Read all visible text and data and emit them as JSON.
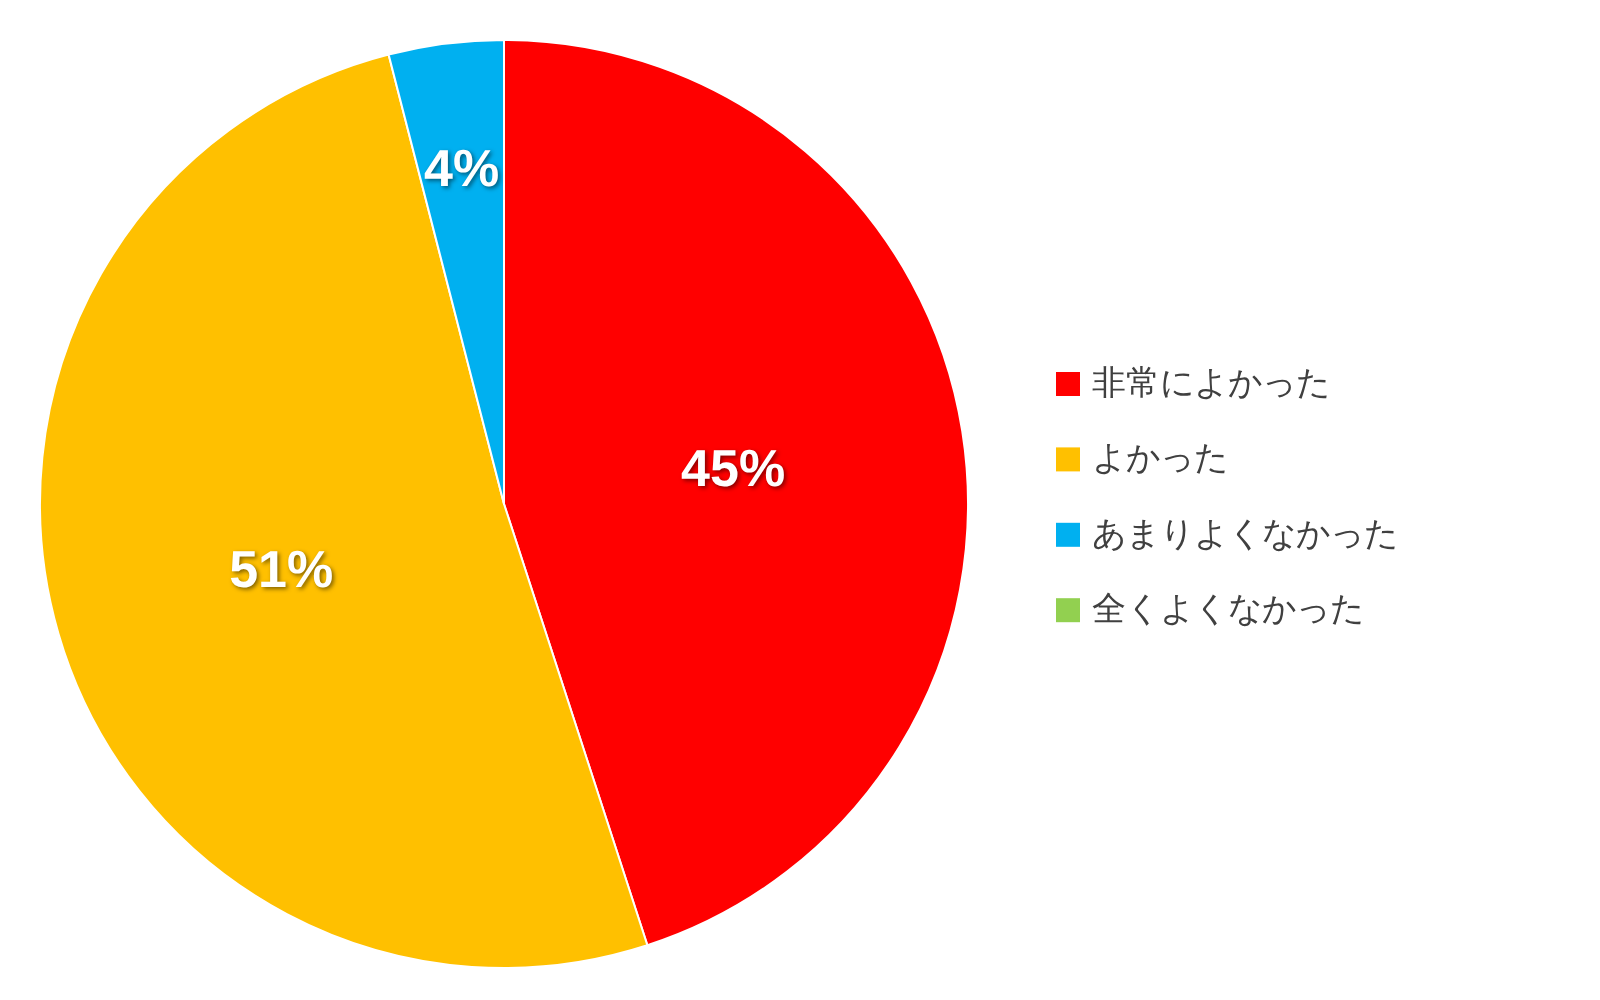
{
  "chart_data": {
    "type": "pie",
    "categories": [
      "非常によかった",
      "よかった",
      "あまりよくなかった",
      "全くよくなかった"
    ],
    "values": [
      45,
      51,
      4,
      0
    ],
    "colors": [
      "#ff0000",
      "#ffc000",
      "#00b0f0",
      "#92d050"
    ],
    "value_labels": [
      "45%",
      "51%",
      "4%",
      null
    ],
    "legend": "right"
  }
}
